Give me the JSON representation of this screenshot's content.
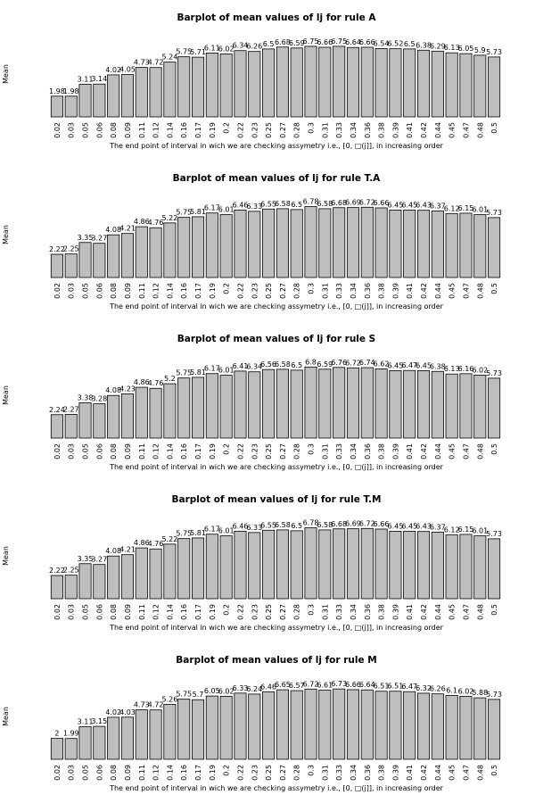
{
  "chart_data": [
    {
      "type": "bar",
      "title": "Barplot of mean values of lj for rule A",
      "ylabel": "Mean",
      "xlabel": "The end point of interval in wich we are checking assymetry i.e., [0, □(j]], in increasing order",
      "categories": [
        "0.02",
        "0.03",
        "0.05",
        "0.06",
        "0.08",
        "0.09",
        "0.11",
        "0.12",
        "0.14",
        "0.16",
        "0.17",
        "0.19",
        "0.2",
        "0.22",
        "0.23",
        "0.25",
        "0.27",
        "0.28",
        "0.3",
        "0.31",
        "0.33",
        "0.34",
        "0.36",
        "0.38",
        "0.39",
        "0.41",
        "0.42",
        "0.44",
        "0.45",
        "0.47",
        "0.48",
        "0.5"
      ],
      "values": [
        1.98,
        1.98,
        3.11,
        3.14,
        4.02,
        4.05,
        4.73,
        4.72,
        5.24,
        5.75,
        5.71,
        6.11,
        6.02,
        6.34,
        6.26,
        6.5,
        6.68,
        6.59,
        6.75,
        6.66,
        6.75,
        6.64,
        6.66,
        6.54,
        6.52,
        6.5,
        6.38,
        6.29,
        6.13,
        6.05,
        5.9,
        5.73
      ],
      "labels": [
        "1.98",
        "1.98",
        "3.11",
        "3.14",
        "4.02",
        "4.05",
        "4.73",
        "4.72",
        "5.24",
        "5.75",
        "5.71",
        "6.11",
        "6.02",
        "6.34",
        "6.26",
        "6.5",
        "6.68",
        "6.59",
        "6.75",
        "6.66",
        "6.75",
        "6.64",
        "6.66",
        "6.54",
        "6.52",
        "6.5",
        "6.38",
        "6.29",
        "6.13",
        "6.05",
        "5.9",
        "5.73"
      ],
      "ylim": [
        0,
        7
      ]
    },
    {
      "type": "bar",
      "title": "Barplot of mean values of lj for rule T.A",
      "ylabel": "Mean",
      "xlabel": "The end point of interval in wich we are checking assymetry i.e., [0, □(j]], in increasing order",
      "categories": [
        "0.02",
        "0.03",
        "0.05",
        "0.06",
        "0.08",
        "0.09",
        "0.11",
        "0.12",
        "0.14",
        "0.16",
        "0.17",
        "0.19",
        "0.2",
        "0.22",
        "0.23",
        "0.25",
        "0.27",
        "0.28",
        "0.3",
        "0.31",
        "0.33",
        "0.34",
        "0.36",
        "0.38",
        "0.39",
        "0.41",
        "0.42",
        "0.44",
        "0.45",
        "0.47",
        "0.48",
        "0.5"
      ],
      "values": [
        2.22,
        2.25,
        3.35,
        3.27,
        4.08,
        4.21,
        4.86,
        4.76,
        5.22,
        5.75,
        5.81,
        6.17,
        6.01,
        6.46,
        6.33,
        6.55,
        6.58,
        6.5,
        6.78,
        6.58,
        6.68,
        6.69,
        6.72,
        6.66,
        6.45,
        6.45,
        6.43,
        6.37,
        6.12,
        6.15,
        6.01,
        5.73
      ],
      "labels": [
        "2.22",
        "2.25",
        "3.35",
        "3.27",
        "4.08",
        "4.21",
        "4.86",
        "4.76",
        "5.22",
        "5.75",
        "5.81",
        "6.17",
        "6.01",
        "6.46",
        "6.33",
        "6.55",
        "6.58",
        "6.5",
        "6.78",
        "6.58",
        "6.68",
        "6.69",
        "6.72",
        "6.66",
        "6.45",
        "6.45",
        "6.43",
        "6.37",
        "6.12",
        "6.15",
        "6.01",
        "5.73"
      ],
      "ylim": [
        0,
        7
      ]
    },
    {
      "type": "bar",
      "title": "Barplot of mean values of lj for rule S",
      "ylabel": "Mean",
      "xlabel": "The end point of interval in wich we are checking assymetry i.e., [0, □(j]], in increasing order",
      "categories": [
        "0.02",
        "0.03",
        "0.05",
        "0.06",
        "0.08",
        "0.09",
        "0.11",
        "0.12",
        "0.14",
        "0.16",
        "0.17",
        "0.19",
        "0.2",
        "0.22",
        "0.23",
        "0.25",
        "0.27",
        "0.28",
        "0.3",
        "0.31",
        "0.33",
        "0.34",
        "0.36",
        "0.38",
        "0.39",
        "0.41",
        "0.42",
        "0.44",
        "0.45",
        "0.47",
        "0.48",
        "0.5"
      ],
      "values": [
        2.24,
        2.27,
        3.38,
        3.28,
        4.08,
        4.23,
        4.86,
        4.76,
        5.2,
        5.75,
        5.81,
        6.17,
        6.01,
        6.41,
        6.34,
        6.56,
        6.58,
        6.5,
        6.8,
        6.59,
        6.76,
        6.72,
        6.74,
        6.62,
        6.45,
        6.47,
        6.45,
        6.38,
        6.13,
        6.16,
        6.02,
        5.73
      ],
      "labels": [
        "2.24",
        "2.27",
        "3.38",
        "3.28",
        "4.08",
        "4.23",
        "4.86",
        "4.76",
        "5.2",
        "5.75",
        "5.81",
        "6.17",
        "6.01",
        "6.41",
        "6.34",
        "6.56",
        "6.58",
        "6.5",
        "6.8",
        "6.59",
        "6.76",
        "6.72",
        "6.74",
        "6.62",
        "6.45",
        "6.47",
        "6.45",
        "6.38",
        "6.13",
        "6.16",
        "6.02",
        "5.73"
      ],
      "ylim": [
        0,
        7
      ]
    },
    {
      "type": "bar",
      "title": "Barplot of mean values of lj for rule T.M",
      "ylabel": "Mean",
      "xlabel": "The end point of interval in wich we are checking assymetry i.e., [0, □(j]], in increasing order",
      "categories": [
        "0.02",
        "0.03",
        "0.05",
        "0.06",
        "0.08",
        "0.09",
        "0.11",
        "0.12",
        "0.14",
        "0.16",
        "0.17",
        "0.19",
        "0.2",
        "0.22",
        "0.23",
        "0.25",
        "0.27",
        "0.28",
        "0.3",
        "0.31",
        "0.33",
        "0.34",
        "0.36",
        "0.38",
        "0.39",
        "0.41",
        "0.42",
        "0.44",
        "0.45",
        "0.47",
        "0.48",
        "0.5"
      ],
      "values": [
        2.22,
        2.25,
        3.35,
        3.27,
        4.08,
        4.21,
        4.86,
        4.76,
        5.22,
        5.75,
        5.81,
        6.17,
        6.01,
        6.46,
        6.33,
        6.55,
        6.58,
        6.5,
        6.78,
        6.58,
        6.68,
        6.69,
        6.72,
        6.66,
        6.45,
        6.45,
        6.43,
        6.37,
        6.12,
        6.15,
        6.01,
        5.73
      ],
      "labels": [
        "2.22",
        "2.25",
        "3.35",
        "3.27",
        "4.08",
        "4.21",
        "4.86",
        "4.76",
        "5.22",
        "5.75",
        "5.81",
        "6.17",
        "6.01",
        "6.46",
        "6.33",
        "6.55",
        "6.58",
        "6.5",
        "6.78",
        "6.58",
        "6.68",
        "6.69",
        "6.72",
        "6.66",
        "6.45",
        "6.45",
        "6.43",
        "6.37",
        "6.12",
        "6.15",
        "6.01",
        "5.73"
      ],
      "ylim": [
        0,
        7
      ]
    },
    {
      "type": "bar",
      "title": "Barplot of mean values of lj for rule M",
      "ylabel": "Mean",
      "xlabel": "The end point of interval in wich we are checking assymetry i.e., [0, □(j]], in increasing order",
      "categories": [
        "0.02",
        "0.03",
        "0.05",
        "0.06",
        "0.08",
        "0.09",
        "0.11",
        "0.12",
        "0.14",
        "0.16",
        "0.17",
        "0.19",
        "0.2",
        "0.22",
        "0.23",
        "0.25",
        "0.27",
        "0.28",
        "0.3",
        "0.31",
        "0.33",
        "0.34",
        "0.36",
        "0.38",
        "0.39",
        "0.41",
        "0.42",
        "0.44",
        "0.45",
        "0.47",
        "0.48",
        "0.5"
      ],
      "values": [
        2,
        1.99,
        3.11,
        3.15,
        4.02,
        4.03,
        4.73,
        4.72,
        5.26,
        5.75,
        5.7,
        6.05,
        6.02,
        6.33,
        6.24,
        6.46,
        6.65,
        6.57,
        6.72,
        6.61,
        6.73,
        6.66,
        6.64,
        6.51,
        6.51,
        6.47,
        6.32,
        6.26,
        6.1,
        6.02,
        5.88,
        5.73
      ],
      "labels": [
        "2",
        "1.99",
        "3.11",
        "3.15",
        "4.02",
        "4.03",
        "4.73",
        "4.72",
        "5.26",
        "5.75",
        "5.7",
        "6.05",
        "6.02",
        "6.33",
        "6.24",
        "6.46",
        "6.65",
        "6.57",
        "6.72",
        "6.61",
        "6.73",
        "6.66",
        "6.64",
        "6.51",
        "6.51",
        "6.47",
        "6.32",
        "6.26",
        "6.1",
        "6.02",
        "5.88",
        "5.73"
      ],
      "ylim": [
        0,
        7
      ]
    }
  ]
}
